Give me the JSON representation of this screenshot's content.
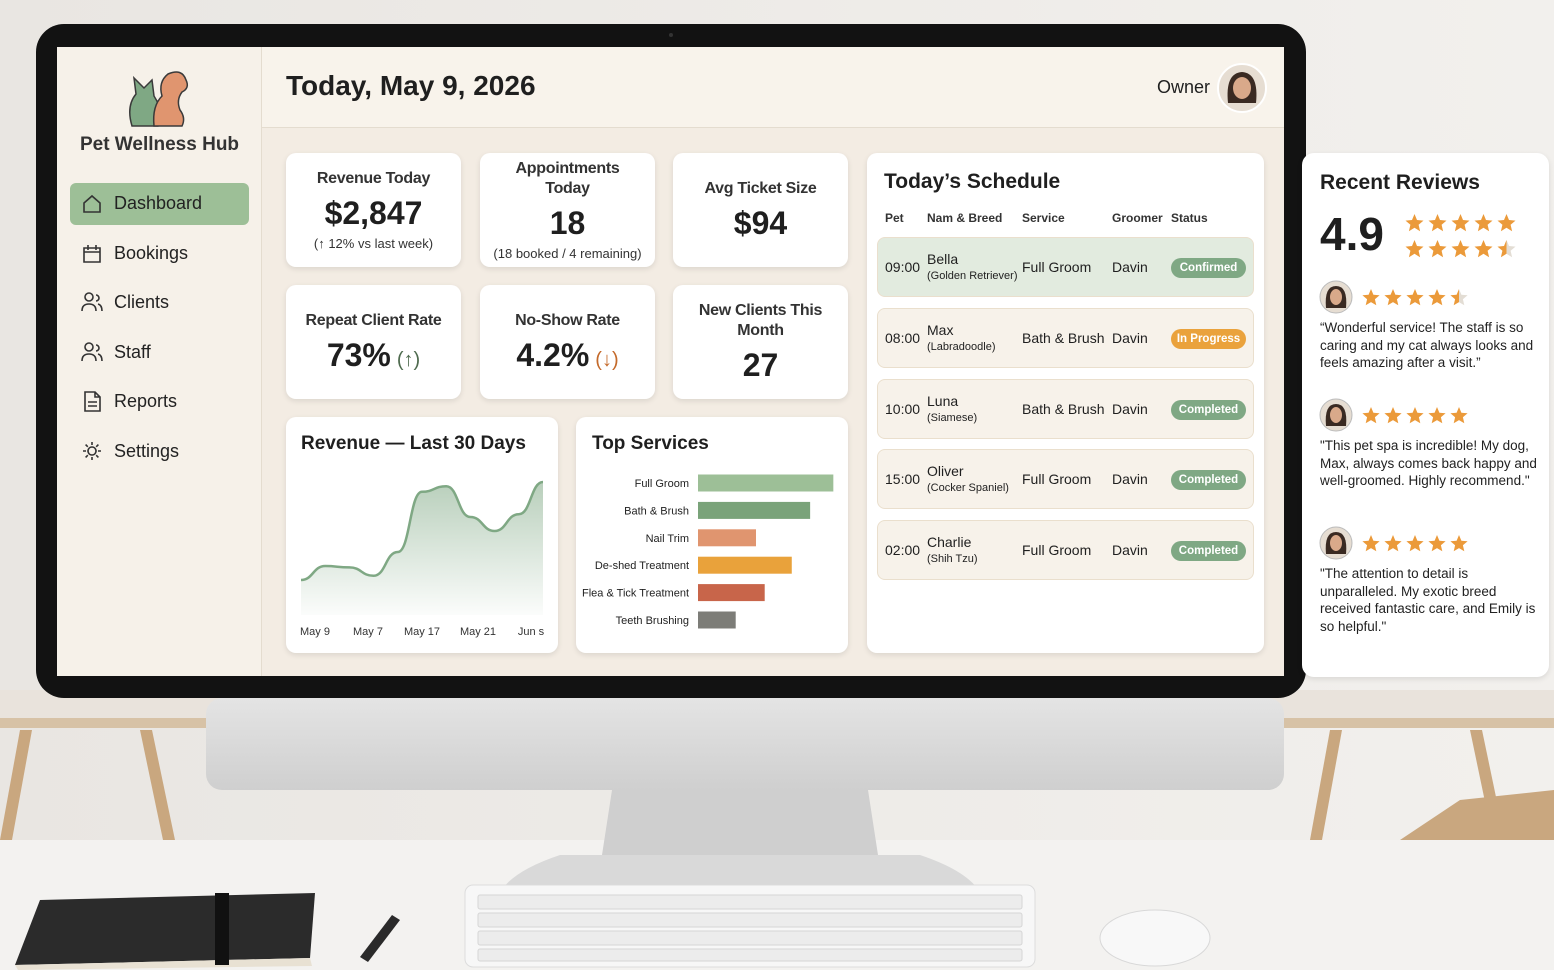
{
  "app": {
    "name": "Pet Wellness Hub"
  },
  "nav": [
    {
      "label": "Dashboard",
      "active": true
    },
    {
      "label": "Bookings",
      "active": false
    },
    {
      "label": "Clients",
      "active": false
    },
    {
      "label": "Staff",
      "active": false
    },
    {
      "label": "Reports",
      "active": false
    },
    {
      "label": "Settings",
      "active": false
    }
  ],
  "header": {
    "title": "Today, May 9, 2026",
    "user": "Owner"
  },
  "kpis": [
    {
      "label": "Revenue Today",
      "value": "$2,847",
      "note": "(↑ 12% vs last week)"
    },
    {
      "label": "Appointments Today",
      "value": "18",
      "note": "(18 booked / 4 remaining)"
    },
    {
      "label": "Avg Ticket Size",
      "value": "$94"
    },
    {
      "label": "Repeat Client Rate",
      "value": "73%",
      "trend": "(↑)",
      "trend_color": "#4f6b4f"
    },
    {
      "label": "No-Show Rate",
      "value": "4.2%",
      "trend": "(↓)",
      "trend_color": "#c46a2b"
    },
    {
      "label": "New Clients This Month",
      "value": "27"
    }
  ],
  "revenue_chart": {
    "type": "area",
    "title": "Revenue — Last 30 Days",
    "x_labels": [
      "May 9",
      "May 7",
      "May 17",
      "May 21",
      "Jun s"
    ],
    "values": [
      25,
      35,
      34,
      28,
      45,
      88,
      92,
      70,
      60,
      72,
      95
    ],
    "ylim": [
      0,
      100
    ],
    "color": "#7fa884"
  },
  "top_services": {
    "type": "bar",
    "title": "Top Services",
    "categories": [
      "Full Groom",
      "Bath & Brush",
      "Nail Trim",
      "De-shed Treatment",
      "Flea & Tick Treatment",
      "Teeth Brushing"
    ],
    "values": [
      140,
      116,
      60,
      97,
      69,
      39
    ],
    "colors": [
      "#9dbf97",
      "#7aa37a",
      "#e0956f",
      "#e9a23b",
      "#c8654a",
      "#7d7d78"
    ],
    "xlim": [
      0,
      150
    ]
  },
  "schedule": {
    "title": "Today’s Schedule",
    "columns": [
      "Pet",
      "Nam & Breed",
      "Service",
      "Groomer",
      "Status"
    ],
    "rows": [
      {
        "time": "09:00",
        "pet": "Bella",
        "breed": "(Golden Retriever)",
        "service": "Full Groom",
        "groomer": "Davin",
        "status": "Confirmed",
        "status_color": "#7fa884",
        "highlight": true
      },
      {
        "time": "08:00",
        "pet": "Max",
        "breed": "(Labradoodle)",
        "service": "Bath & Brush",
        "groomer": "Davin",
        "status": "In Progress",
        "status_color": "#eaa23c",
        "highlight": false
      },
      {
        "time": "10:00",
        "pet": "Luna",
        "breed": "(Siamese)",
        "service": "Bath & Brush",
        "groomer": "Davin",
        "status": "Completed",
        "status_color": "#7fa884",
        "highlight": false
      },
      {
        "time": "15:00",
        "pet": "Oliver",
        "breed": "(Cocker Spaniel)",
        "service": "Full Groom",
        "groomer": "Davin",
        "status": "Completed",
        "status_color": "#7fa884",
        "highlight": false
      },
      {
        "time": "02:00",
        "pet": "Charlie",
        "breed": "(Shih Tzu)",
        "service": "Full Groom",
        "groomer": "Davin",
        "status": "Completed",
        "status_color": "#7fa884",
        "highlight": false
      }
    ]
  },
  "reviews": {
    "title": "Recent Reviews",
    "rating": "4.9",
    "stars": [
      5,
      4.5
    ],
    "star_color": "#eb9a3a",
    "items": [
      {
        "stars": 4.5,
        "text": "“Wonderful service! The staff is so caring and my cat always looks and feels amazing after a visit.”"
      },
      {
        "stars": 5,
        "text": "\"This pet spa is incredible! My dog, Max, always comes back happy and well-groomed. Highly recommend.\""
      },
      {
        "stars": 5,
        "text": "\"The attention to detail is unparalleled. My exotic breed received fantastic care, and Emily is so helpful.\""
      }
    ]
  }
}
